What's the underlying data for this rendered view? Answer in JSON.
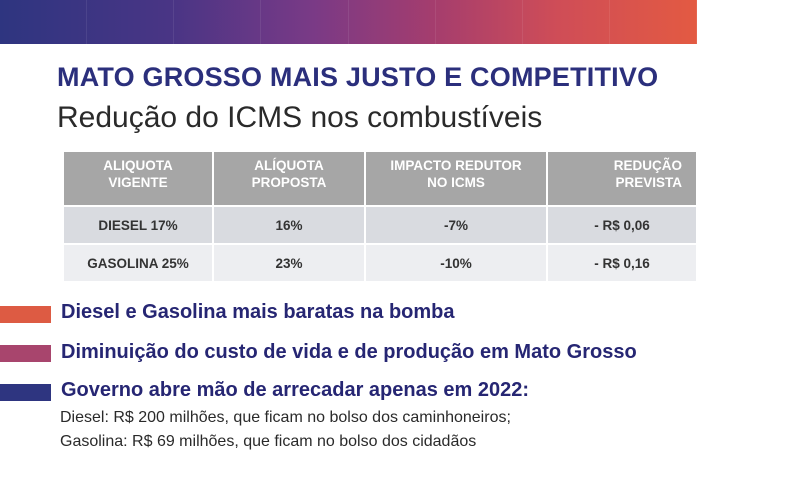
{
  "colors": {
    "title": "#2b2f7c",
    "bullet_orange": "#dd5b43",
    "bullet_rose": "#a8456d",
    "bullet_navy": "#2e3580",
    "header_gray": "#a6a6a6"
  },
  "title": "MATO GROSSO MAIS JUSTO E COMPETITIVO",
  "subtitle": "Redução do ICMS nos combustíveis",
  "table": {
    "headers": [
      [
        "ALIQUOTA",
        "VIGENTE"
      ],
      [
        "ALÍQUOTA",
        "PROPOSTA"
      ],
      [
        "IMPACTO REDUTOR",
        "NO ICMS"
      ],
      [
        "REDUÇÃO PREVISTA",
        ""
      ]
    ],
    "rows": [
      [
        "DIESEL 17%",
        "16%",
        "-7%",
        "- R$ 0,06"
      ],
      [
        "GASOLINA  25%",
        "23%",
        "-10%",
        "- R$ 0,16"
      ]
    ]
  },
  "bullets": [
    "Diesel e Gasolina mais baratas na bomba",
    "Diminuição do custo de vida e de produção em Mato Grosso",
    "Governo abre mão de arrecadar apenas em 2022:"
  ],
  "details": [
    "Diesel: R$ 200 milhões, que ficam no bolso dos caminhoneiros;",
    "Gasolina: R$ 69 milhões, que ficam no bolso dos cidadãos"
  ]
}
